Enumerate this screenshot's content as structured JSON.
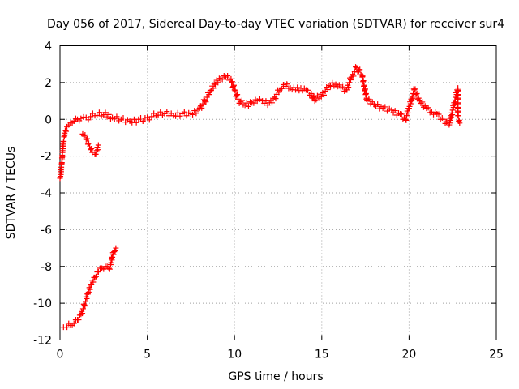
{
  "chart_data": {
    "type": "scatter",
    "title": "Day 056 of 2017, Sidereal Day-to-day VTEC variation (SDTVAR) for receiver sur4",
    "xlabel": "GPS time / hours",
    "ylabel": "SDTVAR / TECUs",
    "xlim": [
      0,
      25
    ],
    "ylim": [
      -12,
      4
    ],
    "xticks": [
      0,
      5,
      10,
      15,
      20,
      25
    ],
    "yticks": [
      -12,
      -10,
      -8,
      -6,
      -4,
      -2,
      0,
      2,
      4
    ],
    "grid": true,
    "marker": "+",
    "series_color": "#ff0000",
    "series": [
      {
        "name": "main",
        "points": [
          [
            0,
            -3.2
          ],
          [
            0.05,
            -3.0
          ],
          [
            0.1,
            -2.4
          ],
          [
            0.15,
            -1.7
          ],
          [
            0.2,
            -1.2
          ],
          [
            0.25,
            -0.9
          ],
          [
            0.3,
            -0.6
          ],
          [
            0.4,
            -0.4
          ],
          [
            0.5,
            -0.3
          ],
          [
            0.6,
            -0.2
          ],
          [
            0.8,
            -0.1
          ],
          [
            1.0,
            0.0
          ],
          [
            1.2,
            0.05
          ],
          [
            1.5,
            0.1
          ],
          [
            2.0,
            0.2
          ],
          [
            2.5,
            0.25
          ],
          [
            3.0,
            0.1
          ],
          [
            3.5,
            0.0
          ],
          [
            4.0,
            -0.1
          ],
          [
            4.5,
            0.0
          ],
          [
            5.0,
            0.1
          ],
          [
            5.5,
            0.2
          ],
          [
            6.0,
            0.3
          ],
          [
            6.5,
            0.2
          ],
          [
            7.0,
            0.3
          ],
          [
            7.5,
            0.3
          ],
          [
            8.0,
            0.6
          ],
          [
            8.3,
            1.0
          ],
          [
            8.6,
            1.5
          ],
          [
            8.9,
            1.9
          ],
          [
            9.2,
            2.2
          ],
          [
            9.5,
            2.3
          ],
          [
            9.8,
            2.2
          ],
          [
            10.0,
            1.6
          ],
          [
            10.2,
            1.1
          ],
          [
            10.5,
            0.8
          ],
          [
            10.8,
            0.7
          ],
          [
            11.0,
            0.9
          ],
          [
            11.3,
            1.0
          ],
          [
            11.6,
            1.0
          ],
          [
            12.0,
            0.9
          ],
          [
            12.3,
            1.2
          ],
          [
            12.6,
            1.6
          ],
          [
            12.9,
            1.8
          ],
          [
            13.2,
            1.7
          ],
          [
            13.5,
            1.6
          ],
          [
            13.8,
            1.7
          ],
          [
            14.1,
            1.6
          ],
          [
            14.4,
            1.4
          ],
          [
            14.6,
            1.0
          ],
          [
            15.5,
            1.8
          ],
          [
            15.8,
            1.9
          ],
          [
            16.1,
            1.7
          ],
          [
            16.4,
            1.6
          ],
          [
            16.7,
            2.3
          ],
          [
            17.0,
            2.8
          ],
          [
            17.3,
            2.4
          ],
          [
            17.6,
            1.0
          ],
          [
            18.0,
            0.8
          ],
          [
            18.5,
            0.6
          ],
          [
            19.0,
            0.5
          ],
          [
            19.5,
            0.3
          ],
          [
            19.8,
            0.0
          ],
          [
            20.0,
            0.6
          ],
          [
            20.3,
            1.6
          ],
          [
            20.6,
            1.0
          ],
          [
            21.0,
            0.6
          ],
          [
            21.3,
            0.4
          ],
          [
            21.6,
            0.3
          ],
          [
            22.0,
            0.0
          ],
          [
            22.3,
            -0.3
          ],
          [
            22.5,
            0.5
          ],
          [
            22.8,
            1.7
          ],
          [
            22.8,
            0.2
          ],
          [
            22.9,
            -0.2
          ]
        ]
      },
      {
        "name": "dip",
        "points": [
          [
            1.3,
            -0.8
          ],
          [
            1.5,
            -1.1
          ],
          [
            1.7,
            -1.5
          ],
          [
            1.85,
            -1.8
          ],
          [
            2.0,
            -1.9
          ],
          [
            2.1,
            -1.7
          ],
          [
            2.2,
            -1.4
          ]
        ]
      },
      {
        "name": "secondary",
        "points": [
          [
            0.2,
            -11.3
          ],
          [
            0.4,
            -11.3
          ],
          [
            0.6,
            -11.2
          ],
          [
            0.8,
            -11.1
          ],
          [
            1.0,
            -10.9
          ],
          [
            1.2,
            -10.6
          ],
          [
            1.4,
            -10.1
          ],
          [
            1.6,
            -9.5
          ],
          [
            1.8,
            -9.0
          ],
          [
            2.0,
            -8.6
          ],
          [
            2.2,
            -8.3
          ],
          [
            2.4,
            -8.1
          ],
          [
            2.6,
            -8.0
          ],
          [
            2.8,
            -8.1
          ],
          [
            2.9,
            -7.9
          ],
          [
            3.0,
            -7.5
          ],
          [
            3.1,
            -7.2
          ],
          [
            3.2,
            -7.0
          ]
        ]
      }
    ]
  }
}
